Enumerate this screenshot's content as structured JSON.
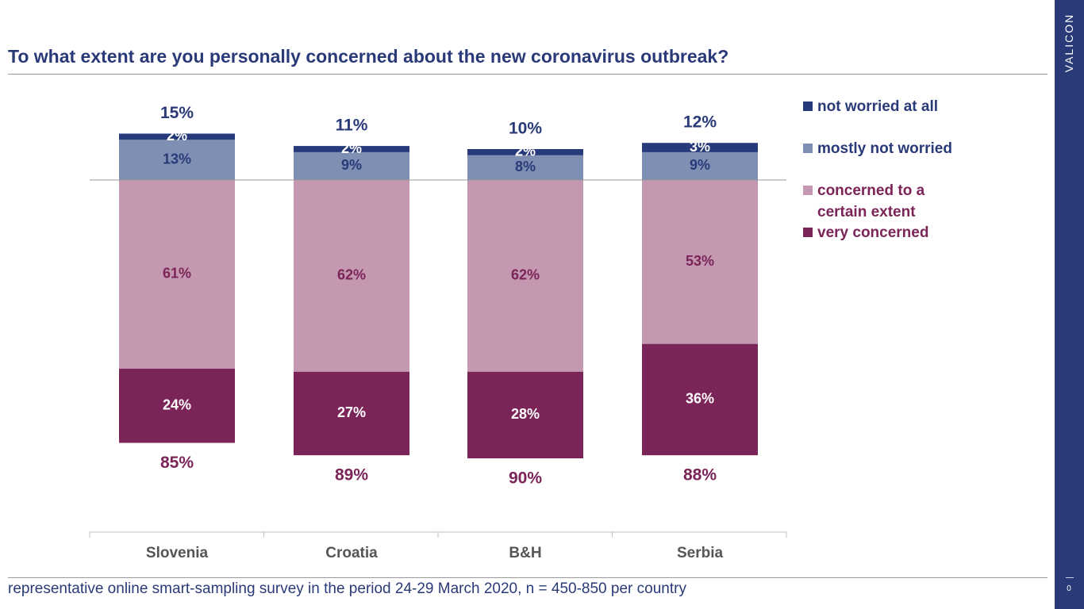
{
  "title": "To what extent are you personally concerned about the new coronavirus outbreak?",
  "footnote": "representative online smart-sampling survey in the period 24-29 March 2020, n = 450-850 per country",
  "brand": "VALICON",
  "page_number": "0",
  "colors": {
    "title": "#2a3a78",
    "navy": "#26397a",
    "slate": "#7f8fb4",
    "mauve": "#c398b0",
    "plum": "#7b2458",
    "sidebar": "#2a3a78"
  },
  "legend": [
    {
      "label": "not worried at all",
      "color": "#26397a",
      "text_color": "#2a3a78"
    },
    {
      "label": "mostly not worried",
      "color": "#7f8fb4",
      "text_color": "#2a3a78"
    },
    {
      "label": "concerned to a certain extent",
      "color": "#c398b0",
      "text_color": "#7b2458"
    },
    {
      "label": "very concerned",
      "color": "#7b2458",
      "text_color": "#7b2458"
    }
  ],
  "chart_data": {
    "type": "bar",
    "stacked": true,
    "diverging": true,
    "categories": [
      "Slovenia",
      "Croatia",
      "B&H",
      "Serbia"
    ],
    "series": [
      {
        "name": "very concerned",
        "values": [
          24,
          27,
          28,
          36
        ],
        "labels": [
          "24%",
          "27%",
          "28%",
          "36%"
        ],
        "direction": "below"
      },
      {
        "name": "concerned to a certain extent",
        "values": [
          61,
          62,
          62,
          53
        ],
        "labels": [
          "61%",
          "62%",
          "62%",
          "53%"
        ],
        "direction": "below"
      },
      {
        "name": "mostly not worried",
        "values": [
          13,
          9,
          8,
          9
        ],
        "labels": [
          "13%",
          "9%",
          "8%",
          "9%"
        ],
        "direction": "above"
      },
      {
        "name": "not worried at all",
        "values": [
          2,
          2,
          2,
          3
        ],
        "labels": [
          "2%",
          "2%",
          "2%",
          "3%"
        ],
        "direction": "above"
      }
    ],
    "totals_concerned": [
      "85%",
      "89%",
      "90%",
      "88%"
    ],
    "totals_not_worried": [
      "15%",
      "11%",
      "10%",
      "12%"
    ],
    "legend_position": "right",
    "grid": false
  }
}
